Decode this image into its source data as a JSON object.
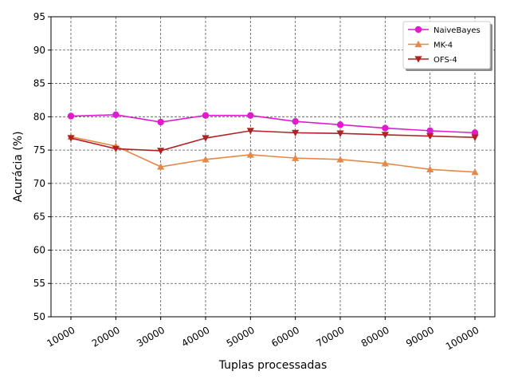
{
  "chart_data": {
    "type": "line",
    "xlabel": "Tuplas processadas",
    "ylabel": "Acurácia (%)",
    "ylim": [
      50,
      95
    ],
    "yticks": [
      50,
      55,
      60,
      65,
      70,
      75,
      80,
      85,
      90,
      95
    ],
    "categories": [
      "10000",
      "20000",
      "30000",
      "40000",
      "50000",
      "60000",
      "70000",
      "80000",
      "90000",
      "100000"
    ],
    "grid": true,
    "legend_position": "top-right",
    "series": [
      {
        "name": "NaiveBayes",
        "color": "#e01bcf",
        "marker": "circle",
        "values": [
          80.1,
          80.3,
          79.2,
          80.2,
          80.2,
          79.3,
          78.8,
          78.3,
          77.9,
          77.6
        ]
      },
      {
        "name": "MK-4",
        "color": "#e5894a",
        "marker": "triangle-up",
        "values": [
          77.0,
          75.6,
          72.5,
          73.6,
          74.3,
          73.8,
          73.6,
          73.0,
          72.1,
          71.7
        ]
      },
      {
        "name": "OFS-4",
        "color": "#b22222",
        "marker": "triangle-down",
        "values": [
          76.8,
          75.2,
          74.9,
          76.8,
          77.9,
          77.6,
          77.5,
          77.3,
          77.1,
          76.9
        ]
      }
    ]
  }
}
